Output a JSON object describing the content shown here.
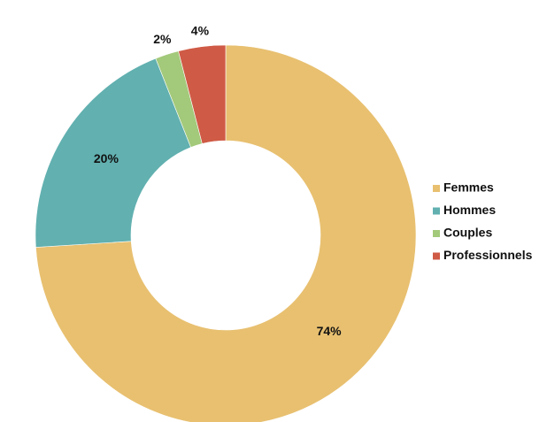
{
  "chart_data": {
    "type": "donut",
    "categories": [
      "Femmes",
      "Hommes",
      "Couples",
      "Professionnels"
    ],
    "values": [
      74,
      20,
      2,
      4
    ],
    "value_labels": [
      "74%",
      "20%",
      "2%",
      "4%"
    ],
    "colors": [
      "#e8c070",
      "#62b0b0",
      "#a3c97a",
      "#cf5a45"
    ],
    "legend": "right"
  }
}
